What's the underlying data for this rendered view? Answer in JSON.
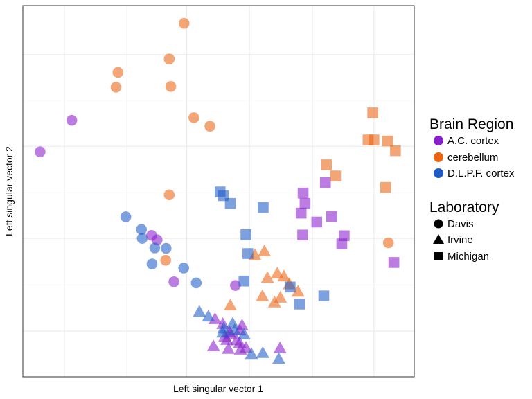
{
  "chart_data": {
    "type": "scatter",
    "title": "",
    "xlabel": "Left singular vector 1",
    "ylabel": "Left singular vector 2",
    "xlim": [
      0,
      100
    ],
    "ylim": [
      0,
      100
    ],
    "grid": true,
    "x_ticks_shown": false,
    "y_ticks_shown": false,
    "legend_position": "right",
    "color_legend": {
      "title": "Brain Region",
      "items": [
        {
          "label": "A.C. cortex",
          "color": "#8a1fcc"
        },
        {
          "label": "cerebellum",
          "color": "#ea6412"
        },
        {
          "label": "D.L.P.F. cortex",
          "color": "#1f5cc6"
        }
      ]
    },
    "shape_legend": {
      "title": "Laboratory",
      "items": [
        {
          "label": "Davis",
          "shape": "circle"
        },
        {
          "label": "Irvine",
          "shape": "triangle"
        },
        {
          "label": "Michigan",
          "shape": "square"
        }
      ]
    },
    "point_opacity": 0.58,
    "series": [
      {
        "region": "A.C. cortex",
        "lab": "Davis",
        "x": [
          4.4,
          12.5,
          32.9,
          34.3,
          38.6,
          54.3
        ],
        "y": [
          60.6,
          69.1,
          38.1,
          36.9,
          25.6,
          24.6
        ]
      },
      {
        "region": "A.C. cortex",
        "lab": "Irvine",
        "x": [
          51.1,
          52.8,
          53.0,
          54.6,
          56.0,
          51.6,
          55.4,
          48.7,
          52.5,
          55.6,
          57.0,
          49.1,
          52.1,
          55.4,
          65.7
        ],
        "y": [
          14.2,
          12.0,
          11.6,
          9.8,
          13.8,
          10.8,
          9.1,
          8.2,
          7.5,
          7.3,
          7.8,
          15.5,
          9.9,
          12.5,
          7.7
        ]
      },
      {
        "region": "A.C. cortex",
        "lab": "Michigan",
        "x": [
          71.6,
          72.1,
          71.1,
          78.9,
          75.1,
          71.5,
          77.3,
          82.1,
          81.5,
          94.8
        ],
        "y": [
          49.5,
          46.7,
          44.1,
          43.2,
          41.7,
          38.2,
          52.3,
          38.0,
          35.8,
          30.8
        ]
      },
      {
        "region": "cerebellum",
        "lab": "Davis",
        "x": [
          41.2,
          37.4,
          24.3,
          23.8,
          37.8,
          43.7,
          47.8,
          37.4,
          36.5,
          93.4
        ],
        "y": [
          95.2,
          85.6,
          82.0,
          78.0,
          78.2,
          69.8,
          67.5,
          49.0,
          31.4,
          36.1
        ]
      },
      {
        "region": "cerebellum",
        "lab": "Irvine",
        "x": [
          59.3,
          61.7,
          62.5,
          65.0,
          66.7,
          68.1,
          70.3,
          61.2,
          64.3,
          65.8,
          53.0
        ],
        "y": [
          32.7,
          33.8,
          26.6,
          27.8,
          27.0,
          24.9,
          22.9,
          21.7,
          20.0,
          21.3,
          19.2
        ]
      },
      {
        "region": "cerebellum",
        "lab": "Michigan",
        "x": [
          89.4,
          88.2,
          89.7,
          93.2,
          95.2,
          77.6,
          79.9,
          92.7
        ],
        "y": [
          71.1,
          63.8,
          63.8,
          63.5,
          60.9,
          57.1,
          54.1,
          51.0
        ]
      },
      {
        "region": "D.L.P.F. cortex",
        "lab": "Davis",
        "x": [
          30.3,
          26.3,
          30.5,
          33.7,
          36.6,
          33.0,
          41.1,
          44.3
        ],
        "y": [
          39.7,
          43.1,
          37.3,
          34.7,
          34.6,
          30.4,
          29.3,
          25.3
        ]
      },
      {
        "region": "D.L.P.F. cortex",
        "lab": "Irvine",
        "x": [
          45.1,
          47.4,
          51.3,
          53.6,
          51.1,
          54.1,
          56.5,
          58.4,
          61.3,
          65.4
        ],
        "y": [
          17.5,
          16.2,
          13.0,
          14.3,
          11.9,
          12.5,
          11.4,
          6.1,
          6.4,
          4.8
        ]
      },
      {
        "region": "D.L.P.F. cortex",
        "lab": "Michigan",
        "x": [
          50.4,
          51.2,
          53.0,
          61.4,
          57.0,
          57.5,
          56.5,
          68.3,
          70.7,
          76.9
        ],
        "y": [
          49.8,
          48.8,
          46.7,
          45.6,
          38.3,
          33.2,
          25.8,
          24.2,
          19.6,
          21.8
        ]
      }
    ]
  }
}
